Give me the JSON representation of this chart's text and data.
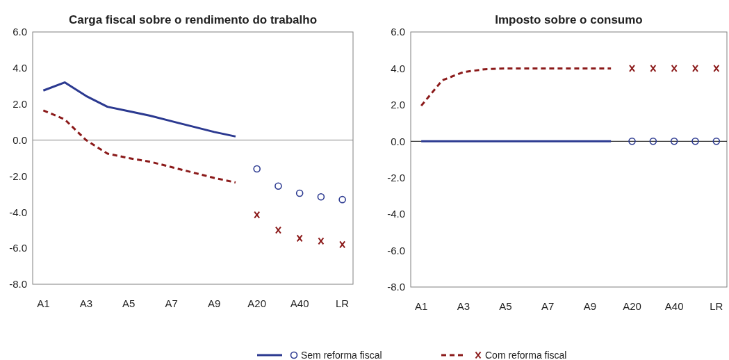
{
  "chart_data": [
    {
      "type": "line",
      "title": "Carga fiscal sobre o rendimento do trabalho",
      "categories": [
        "A1",
        null,
        "A3",
        null,
        "A5",
        null,
        "A7",
        null,
        "A9",
        null,
        "A20",
        null,
        "A40",
        null,
        "LR"
      ],
      "ylim": [
        -8,
        6
      ],
      "yticks": [
        {
          "value": 6,
          "label": "6.0"
        },
        {
          "value": 4,
          "label": "4.0"
        },
        {
          "value": 2,
          "label": "2.0"
        },
        {
          "value": 0,
          "label": "0.0"
        },
        {
          "value": -2,
          "label": "-2.0"
        },
        {
          "value": -4,
          "label": "-4.0"
        },
        {
          "value": -6,
          "label": "-6.0"
        },
        {
          "value": -8,
          "label": "-8.0"
        }
      ],
      "grid": false,
      "legend": "bottom",
      "ref_lines": [
        {
          "axis": "y",
          "value": 0,
          "color": "#808080"
        }
      ],
      "series": [
        {
          "name": "Sem reforma fiscal",
          "color": "#2b3990",
          "line_style": "solid",
          "values": [
            2.75,
            3.2,
            2.45,
            1.85,
            1.6,
            1.35,
            1.05,
            0.75,
            0.45,
            0.2,
            null,
            null,
            null,
            null,
            null
          ]
        },
        {
          "name": "Com reforma fiscal",
          "color": "#8b1a1a",
          "line_style": "dashed",
          "values": [
            1.65,
            1.15,
            0.0,
            -0.75,
            -1.0,
            -1.2,
            -1.5,
            -1.8,
            -2.1,
            -2.35,
            null,
            null,
            null,
            null,
            null
          ]
        },
        {
          "type": "scatter",
          "color": "#2b3990",
          "marker": "circle",
          "values": [
            null,
            null,
            null,
            null,
            null,
            null,
            null,
            null,
            null,
            null,
            -1.6,
            -2.55,
            -2.95,
            -3.15,
            -3.3
          ]
        },
        {
          "type": "scatter",
          "color": "#8b1a1a",
          "marker": "cross",
          "values": [
            null,
            null,
            null,
            null,
            null,
            null,
            null,
            null,
            null,
            null,
            -4.15,
            -5.0,
            -5.45,
            -5.6,
            -5.8
          ]
        }
      ]
    },
    {
      "type": "line",
      "title": "Imposto sobre o consumo",
      "categories": [
        "A1",
        null,
        "A3",
        null,
        "A5",
        null,
        "A7",
        null,
        "A9",
        null,
        "A20",
        null,
        "A40",
        null,
        "LR"
      ],
      "ylim": [
        -8,
        6
      ],
      "yticks": [
        {
          "value": 6,
          "label": "6.0"
        },
        {
          "value": 4,
          "label": "4.0"
        },
        {
          "value": 2,
          "label": "2.0"
        },
        {
          "value": 0,
          "label": "0.0"
        },
        {
          "value": -2,
          "label": "-2.0"
        },
        {
          "value": -4,
          "label": "-4.0"
        },
        {
          "value": -6,
          "label": "-6.0"
        },
        {
          "value": -8,
          "label": "-8.0"
        }
      ],
      "grid": false,
      "ref_lines": [
        {
          "axis": "y",
          "value": 0,
          "color": "#000000"
        }
      ],
      "series": [
        {
          "color": "#2b3990",
          "line_style": "solid",
          "values": [
            0,
            0,
            0,
            0,
            0,
            0,
            0,
            0,
            0,
            0,
            null,
            null,
            null,
            null,
            null
          ]
        },
        {
          "color": "#8b1a1a",
          "line_style": "dashed",
          "values": [
            1.95,
            3.35,
            3.8,
            3.95,
            4.0,
            4.0,
            4.0,
            4.0,
            4.0,
            4.0,
            null,
            null,
            null,
            null,
            null
          ]
        },
        {
          "type": "scatter",
          "color": "#2b3990",
          "marker": "circle",
          "values": [
            null,
            null,
            null,
            null,
            null,
            null,
            null,
            null,
            null,
            null,
            0,
            0,
            0,
            0,
            0
          ]
        },
        {
          "type": "scatter",
          "color": "#8b1a1a",
          "marker": "cross",
          "values": [
            null,
            null,
            null,
            null,
            null,
            null,
            null,
            null,
            null,
            null,
            4.0,
            4.0,
            4.0,
            4.0,
            4.0
          ]
        }
      ]
    }
  ]
}
